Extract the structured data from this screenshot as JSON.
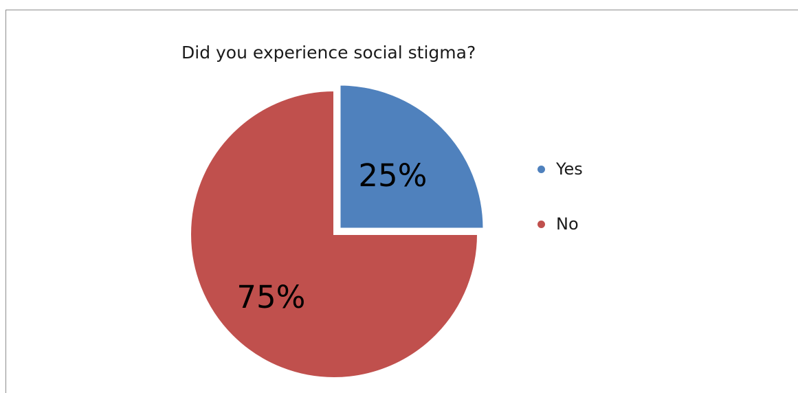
{
  "chart_data": {
    "type": "pie",
    "title": "Did you experience social stigma?",
    "categories": [
      "Yes",
      "No"
    ],
    "values": [
      25,
      75
    ],
    "labels": [
      "25%",
      "75%"
    ],
    "colors": [
      "#4f81bd",
      "#c0504d"
    ],
    "exploded_slice": "Yes",
    "legend_position": "right"
  }
}
